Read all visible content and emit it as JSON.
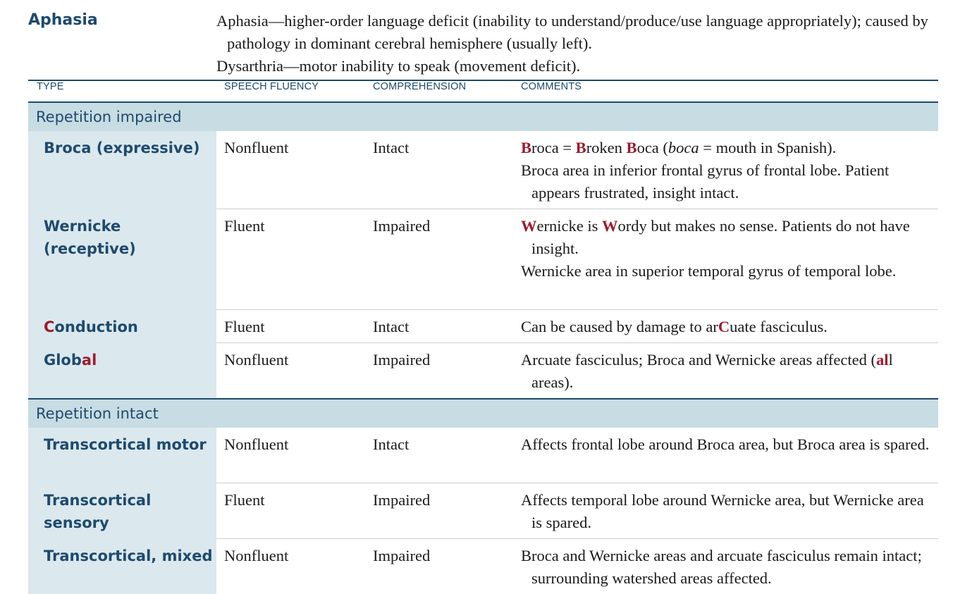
{
  "topic": {
    "title": "Aphasia"
  },
  "intro": {
    "line1": "Aphasia—higher-order language deficit (inability to understand/produce/use language appropriately); caused by pathology in dominant cerebral hemisphere (usually left).",
    "line2": "Dysarthria—motor inability to speak (movement deficit)."
  },
  "table": {
    "headers": {
      "type": "TYPE",
      "fluency": "SPEECH FLUENCY",
      "comprehension": "COMPREHENSION",
      "comments": "COMMENTS"
    },
    "sections": {
      "impaired": "Repetition impaired",
      "intact": "Repetition intact"
    },
    "rows": {
      "broca": {
        "type": "Broca (expressive)",
        "fluency": "Nonfluent",
        "comprehension": "Intact",
        "c1": {
          "b1": "B",
          "t1": "roca = ",
          "b2": "B",
          "t2": "roken ",
          "b3": "B",
          "t3": "oca (",
          "it": "boca",
          "t4": " = mouth in Spanish)."
        },
        "c2": "Broca area in inferior frontal gyrus of frontal lobe. Patient appears frustrated, insight intact."
      },
      "wernicke": {
        "type": "Wernicke (receptive)",
        "fluency": "Fluent",
        "comprehension": "Impaired",
        "c1": {
          "b1": "W",
          "t1": "ernicke is ",
          "b2": "W",
          "t2": "ordy but makes no sense. Patients do not have insight."
        },
        "c2": "Wernicke area in superior temporal gyrus of temporal lobe."
      },
      "conduction": {
        "type_hl": "C",
        "type_rest": "onduction",
        "fluency": "Fluent",
        "comprehension": "Intact",
        "c1": {
          "t1": "Can be caused by damage to ar",
          "b1": "C",
          "t2": "uate fasciculus."
        }
      },
      "global": {
        "type_rest": "Glob",
        "type_hl": "al",
        "fluency": "Nonfluent",
        "comprehension": "Impaired",
        "c1": {
          "t1": "Arcuate fasciculus; Broca and Wernicke areas affected (",
          "b1": "al",
          "t2": "l areas)."
        }
      },
      "tmotor": {
        "type": "Transcortical motor",
        "fluency": "Nonfluent",
        "comprehension": "Intact",
        "c1": "Affects frontal lobe around Broca area, but Broca area is spared."
      },
      "tsensory": {
        "type": "Transcortical sensory",
        "fluency": "Fluent",
        "comprehension": "Impaired",
        "c1": "Affects temporal lobe around Wernicke area, but Wernicke area is spared."
      },
      "tmixed": {
        "type": "Transcortical, mixed",
        "fluency": "Nonfluent",
        "comprehension": "Impaired",
        "c1": "Broca and Wernicke areas and arcuate fasciculus remain intact; surrounding watershed areas affected."
      }
    }
  },
  "colors": {
    "heading": "#1e4a6e",
    "accent": "#9b1c2e",
    "section_bg": "#c7dce3",
    "type_bg": "#dbe8ed"
  }
}
